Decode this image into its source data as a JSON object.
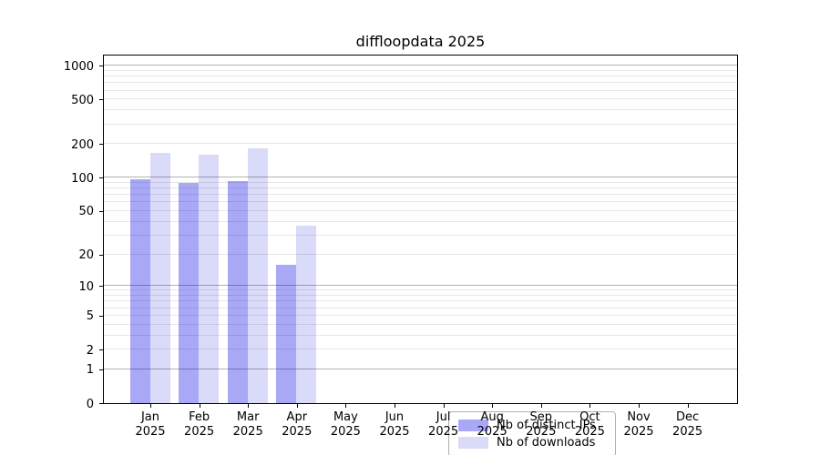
{
  "chart_data": {
    "type": "bar",
    "title": "diffloopdata 2025",
    "categories": [
      "Jan",
      "Feb",
      "Mar",
      "Apr",
      "May",
      "Jun",
      "Jul",
      "Aug",
      "Sep",
      "Oct",
      "Nov",
      "Dec"
    ],
    "year_label": "2025",
    "series": [
      {
        "name": "Nb of distinct IPs",
        "color": "#a8a8f7",
        "values": [
          97,
          90,
          94,
          16,
          0,
          0,
          0,
          0,
          0,
          0,
          0,
          0
        ]
      },
      {
        "name": "Nb of downloads",
        "color": "#dadaf9",
        "values": [
          168,
          161,
          183,
          37,
          0,
          0,
          0,
          0,
          0,
          0,
          0,
          0
        ]
      }
    ],
    "y_axis": {
      "scale": "log1p",
      "ticks": [
        0,
        1,
        2,
        5,
        10,
        20,
        50,
        100,
        200,
        500,
        1000
      ],
      "ylim": [
        0,
        1275
      ]
    },
    "x_axis": {
      "tick_label_lines": 2
    },
    "grid": {
      "major_values": [
        1,
        10,
        100,
        1000
      ],
      "major_color": "rgba(0,0,0,0.30)",
      "minor_color": "rgba(0,0,0,0.09)",
      "drawn_above_bars": true
    },
    "legend": {
      "position": "lower center-left",
      "entries": [
        "Nb of distinct IPs",
        "Nb of downloads"
      ]
    }
  }
}
